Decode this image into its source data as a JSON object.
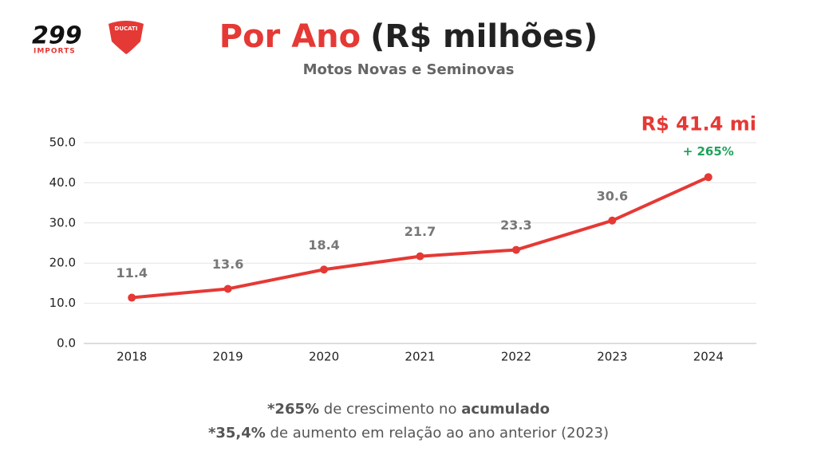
{
  "logo": {
    "brand": "299",
    "sub": "IMPORTS",
    "partner": "DUCATI"
  },
  "chart_data": {
    "type": "line",
    "title": {
      "highlight": "Por Ano",
      "rest": "(R$ milhões)"
    },
    "subtitle": "Motos Novas e Seminovas",
    "categories": [
      "2018",
      "2019",
      "2020",
      "2021",
      "2022",
      "2023",
      "2024"
    ],
    "values": [
      11.4,
      13.6,
      18.4,
      21.7,
      23.3,
      30.6,
      41.4
    ],
    "value_labels": [
      "11.4",
      "13.6",
      "18.4",
      "21.7",
      "23.3",
      "30.6",
      "R$ 41.4 mi"
    ],
    "annotation": "+ 265%",
    "color": "#e53935",
    "ylim": [
      0,
      50
    ],
    "yticks": [
      {
        "value": 0,
        "label": "0.0"
      },
      {
        "value": 10,
        "label": "10.0"
      },
      {
        "value": 20,
        "label": "20.0"
      },
      {
        "value": 30,
        "label": "30.0"
      },
      {
        "value": 40,
        "label": "40.0"
      },
      {
        "value": 50,
        "label": "50.0"
      }
    ],
    "grid": true
  },
  "footnotes": [
    [
      {
        "text": "*265%",
        "bold": true
      },
      {
        "text": " de crescimento no ",
        "bold": false
      },
      {
        "text": "acumulado",
        "bold": true
      }
    ],
    [
      {
        "text": "*35,4%",
        "bold": true
      },
      {
        "text": " de aumento em relação ao ano anterior (2023)",
        "bold": false
      }
    ]
  ]
}
